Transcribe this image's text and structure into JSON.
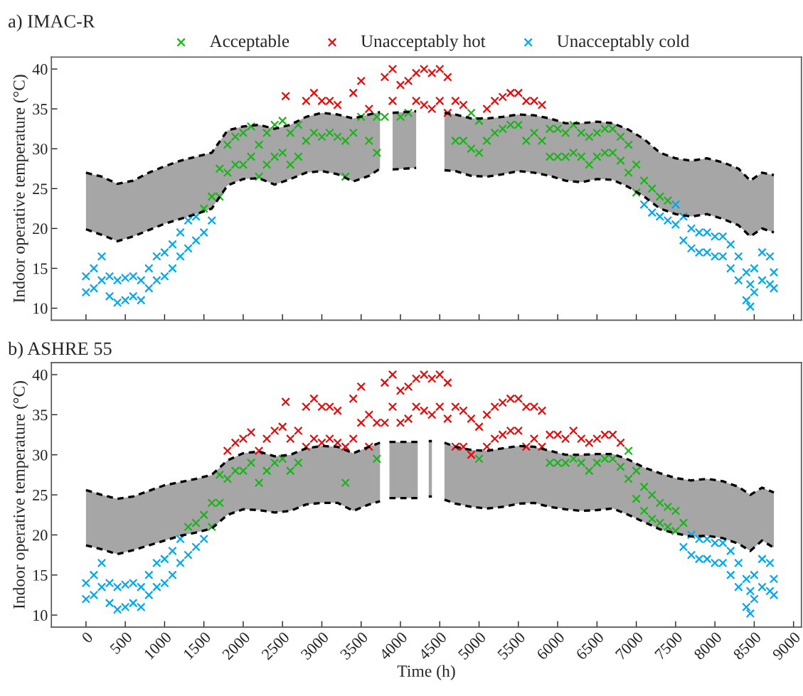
{
  "chart_data": [
    {
      "type": "scatter",
      "title": "a) IMAC-R",
      "ylabel": "Indoor operative temperature (°C)",
      "xlim": [
        -440,
        9100
      ],
      "ylim": [
        8.5,
        41.5
      ],
      "xticks": [
        0,
        500,
        1000,
        1500,
        2000,
        2500,
        3000,
        3500,
        4000,
        4500,
        5000,
        5500,
        6000,
        6500,
        7000,
        7500,
        8000,
        8500,
        9000
      ],
      "yticks": [
        10,
        15,
        20,
        25,
        30,
        35,
        40
      ],
      "tick_labels": "y",
      "legend": "top",
      "marker": "cross",
      "grid": false,
      "series": [
        {
          "type": "line",
          "color": "#000000",
          "line_style": "dashed",
          "marker": "none",
          "x": [
            0,
            200,
            400,
            600,
            800,
            1000,
            1200,
            1400,
            1600,
            1800,
            2000,
            2200,
            2400,
            2600,
            2800,
            3000,
            3200,
            3400,
            3600,
            3740,
            3820,
            3900,
            4200,
            4380,
            4560,
            4700,
            4900,
            5100,
            5300,
            5500,
            5700,
            5900,
            6100,
            6300,
            6500,
            6700,
            6900,
            7100,
            7300,
            7500,
            7700,
            7900,
            8100,
            8300,
            8450,
            8600,
            8750
          ],
          "values": [
            27,
            26.5,
            25.6,
            26,
            27,
            27.8,
            28.5,
            29,
            29.5,
            32.3,
            32.8,
            33,
            32.5,
            33,
            34,
            34.5,
            34.3,
            33.8,
            34.3,
            34.6,
            null,
            34.5,
            34.7,
            null,
            34.5,
            34.3,
            33.8,
            33.8,
            34,
            34.3,
            34.2,
            33.8,
            33.2,
            33.2,
            33.4,
            33.2,
            32.4,
            31.2,
            29.5,
            28.8,
            28.5,
            28.8,
            28.3,
            27.5,
            26,
            27,
            26.7
          ],
          "upper": [
            27,
            26.5,
            25.6,
            26,
            27,
            27.8,
            28.5,
            29,
            29.5,
            32.3,
            32.8,
            33,
            32.5,
            33,
            34,
            34.5,
            34.3,
            33.8,
            34.3,
            34.6,
            null,
            34.5,
            34.7,
            null,
            34.5,
            34.3,
            33.8,
            33.8,
            34,
            34.3,
            34.2,
            33.8,
            33.2,
            33.2,
            33.4,
            33.2,
            32.4,
            31.2,
            29.5,
            28.8,
            28.5,
            28.8,
            28.3,
            27.5,
            26,
            27,
            26.7
          ],
          "lower": [
            19.9,
            19.2,
            18.4,
            19,
            19.8,
            20.6,
            21.2,
            21.8,
            22.5,
            25.4,
            26.2,
            26.3,
            25.5,
            26.2,
            27,
            27.2,
            26.8,
            25.9,
            26.6,
            27.5,
            null,
            27.4,
            27.6,
            null,
            27.3,
            27.2,
            26.6,
            26.5,
            26.8,
            27.2,
            27,
            26.6,
            26,
            25.8,
            26.2,
            26.1,
            25.2,
            24,
            22.5,
            21.8,
            21.5,
            21.8,
            21.2,
            20.4,
            19,
            20,
            19.5
          ]
        },
        {
          "type": "line",
          "color": "#000000",
          "line_style": "dashed",
          "marker": "none",
          "x": [
            0,
            200,
            400,
            600,
            800,
            1000,
            1200,
            1400,
            1600,
            1800,
            2000,
            2200,
            2400,
            2600,
            2800,
            3000,
            3200,
            3400,
            3600,
            3740,
            3820,
            3900,
            4200,
            4380,
            4560,
            4700,
            4900,
            5100,
            5300,
            5500,
            5700,
            5900,
            6100,
            6300,
            6500,
            6700,
            6900,
            7100,
            7300,
            7500,
            7700,
            7900,
            8100,
            8300,
            8450,
            8600,
            8750
          ],
          "values": [
            19.9,
            19.2,
            18.4,
            19,
            19.8,
            20.6,
            21.2,
            21.8,
            22.5,
            25.4,
            26.2,
            26.3,
            25.5,
            26.2,
            27,
            27.2,
            26.8,
            25.9,
            26.6,
            27.5,
            null,
            27.4,
            27.6,
            null,
            27.3,
            27.2,
            26.6,
            26.5,
            26.8,
            27.2,
            27,
            26.6,
            26,
            25.8,
            26.2,
            26.1,
            25.2,
            24,
            22.5,
            21.8,
            21.5,
            21.8,
            21.2,
            20.4,
            19,
            20,
            19.5
          ]
        },
        {
          "name": "Acceptable",
          "color": "#1db31d",
          "x": [
            1500,
            1600,
            1700,
            1700,
            1800,
            1800,
            1900,
            1900,
            2000,
            2000,
            2100,
            2100,
            2200,
            2200,
            2300,
            2300,
            2400,
            2400,
            2500,
            2500,
            2600,
            2600,
            2700,
            2700,
            2800,
            2900,
            3000,
            3100,
            3200,
            3300,
            3300,
            3400,
            3500,
            3600,
            3700,
            3700,
            3800,
            4000,
            4100,
            4700,
            4800,
            4900,
            4900,
            5000,
            5000,
            5100,
            5200,
            5300,
            5400,
            5500,
            5600,
            5700,
            5800,
            5900,
            5900,
            6000,
            6000,
            6100,
            6100,
            6200,
            6200,
            6300,
            6300,
            6400,
            6400,
            6500,
            6500,
            6600,
            6600,
            6700,
            6700,
            6800,
            6800,
            6900,
            6900,
            7000,
            7000,
            7100,
            7200,
            7300,
            7400
          ],
          "values": [
            22.5,
            24,
            24,
            27.5,
            27,
            30.5,
            28,
            31.5,
            28,
            32,
            29,
            32.8,
            26.5,
            30.5,
            28,
            32,
            29,
            33,
            29.5,
            33.5,
            28,
            32,
            29,
            33,
            31,
            32,
            31.5,
            32,
            31.5,
            26.5,
            31,
            32,
            34,
            31,
            29.5,
            34,
            34,
            34,
            34.5,
            31,
            31,
            30,
            34.5,
            29.5,
            33.5,
            31,
            32,
            32.5,
            33,
            33,
            31,
            32,
            31,
            29,
            32.5,
            29,
            32.5,
            29,
            32,
            29.5,
            33,
            29,
            32,
            28,
            31.5,
            29,
            32,
            29.5,
            32.5,
            29.5,
            32.5,
            28.5,
            31.5,
            27,
            30.5,
            24.5,
            28,
            26,
            25,
            24,
            23.5
          ]
        },
        {
          "name": "Unacceptably hot",
          "color": "#e60a0a",
          "x": [
            2540,
            2800,
            2900,
            3000,
            3100,
            3200,
            3400,
            3500,
            3600,
            3800,
            3900,
            3900,
            4000,
            4100,
            4200,
            4200,
            4300,
            4300,
            4400,
            4400,
            4500,
            4500,
            4600,
            4600,
            4700,
            4800,
            5100,
            5200,
            5300,
            5400,
            5500,
            5600,
            5700,
            5800
          ],
          "values": [
            36.6,
            36,
            37,
            36,
            36,
            35.5,
            37,
            38.5,
            35,
            39,
            36,
            40,
            38,
            38.5,
            36,
            39.5,
            35.5,
            40,
            35,
            39.5,
            36,
            40,
            34.5,
            39,
            36,
            35.5,
            35,
            36,
            36.5,
            37,
            37,
            36,
            36,
            35.5
          ]
        },
        {
          "name": "Unacceptably cold",
          "color": "#00a8f0",
          "x": [
            0,
            0,
            100,
            100,
            200,
            200,
            300,
            300,
            400,
            400,
            500,
            500,
            600,
            600,
            700,
            700,
            800,
            800,
            900,
            900,
            1000,
            1000,
            1100,
            1100,
            1200,
            1200,
            1300,
            1300,
            1400,
            1400,
            1500,
            1600,
            7100,
            7200,
            7300,
            7400,
            7500,
            7500,
            7600,
            7600,
            7700,
            7700,
            7800,
            7800,
            7900,
            7900,
            8000,
            8000,
            8100,
            8100,
            8200,
            8200,
            8300,
            8300,
            8400,
            8400,
            8450,
            8450,
            8500,
            8500,
            8600,
            8600,
            8700,
            8700,
            8750,
            8750
          ],
          "values": [
            12,
            14,
            12.5,
            15,
            13.5,
            16.5,
            11.5,
            14,
            10.7,
            13.5,
            11,
            13.8,
            11.5,
            14,
            11,
            13.5,
            12.5,
            15,
            13.5,
            16.5,
            14,
            17,
            15,
            18,
            16.5,
            19.5,
            17.5,
            21,
            18.5,
            21.5,
            19.5,
            21,
            23,
            22,
            21.5,
            21,
            20.5,
            23,
            18.5,
            21.5,
            17.5,
            20,
            17,
            19.5,
            17,
            19.5,
            16.5,
            19,
            16.5,
            19,
            15,
            18,
            13.5,
            16.5,
            11,
            14.5,
            10.2,
            13,
            12,
            15,
            13.5,
            17,
            13,
            16.5,
            12.5,
            14.5
          ]
        }
      ]
    },
    {
      "type": "scatter",
      "title": "b) ASHRE 55",
      "xlabel": "Time (h)",
      "ylabel": "Indoor operative temperature (°C)",
      "xlim": [
        -440,
        9100
      ],
      "ylim": [
        8.5,
        41.5
      ],
      "xticks": [
        0,
        500,
        1000,
        1500,
        2000,
        2500,
        3000,
        3500,
        4000,
        4500,
        5000,
        5500,
        6000,
        6500,
        7000,
        7500,
        8000,
        8500,
        9000
      ],
      "yticks": [
        10,
        15,
        20,
        25,
        30,
        35,
        40
      ],
      "marker": "cross",
      "grid": false,
      "series": [
        {
          "type": "line",
          "color": "#000000",
          "line_style": "dashed",
          "marker": "none",
          "x": [
            0,
            200,
            400,
            600,
            800,
            1000,
            1200,
            1400,
            1600,
            1800,
            2000,
            2200,
            2400,
            2600,
            2800,
            3000,
            3200,
            3400,
            3600,
            3740,
            3800,
            3860,
            4220,
            4300,
            4360,
            4400,
            4480,
            4560,
            4700,
            4900,
            5100,
            5300,
            5500,
            5700,
            5900,
            6100,
            6300,
            6500,
            6700,
            6900,
            7100,
            7300,
            7500,
            7700,
            7900,
            8100,
            8300,
            8450,
            8600,
            8750
          ],
          "values": [
            25.6,
            25,
            24.5,
            24.8,
            25.5,
            26.2,
            26.6,
            27,
            27.5,
            29.3,
            30.2,
            30.4,
            29.8,
            30,
            30.8,
            31.1,
            31,
            30.2,
            31,
            31.5,
            null,
            31.6,
            31.6,
            null,
            31.7,
            31.7,
            null,
            31.5,
            31,
            30.6,
            30.5,
            30.8,
            31.1,
            31,
            30.5,
            30,
            30,
            30.1,
            30.1,
            29.4,
            28.4,
            27.7,
            27.1,
            26.8,
            27,
            26.7,
            26,
            25,
            25.9,
            25.3
          ],
          "upper": [
            25.6,
            25,
            24.5,
            24.8,
            25.5,
            26.2,
            26.6,
            27,
            27.5,
            29.3,
            30.2,
            30.4,
            29.8,
            30,
            30.8,
            31.1,
            31,
            30.2,
            31,
            31.5,
            null,
            31.6,
            31.6,
            null,
            31.7,
            31.7,
            null,
            31.5,
            31,
            30.6,
            30.5,
            30.8,
            31.1,
            31,
            30.5,
            30,
            30,
            30.1,
            30.1,
            29.4,
            28.4,
            27.7,
            27.1,
            26.8,
            27,
            26.7,
            26,
            25,
            25.9,
            25.3
          ],
          "lower": [
            18.7,
            18.2,
            17.6,
            18.1,
            18.7,
            19.3,
            19.9,
            20.3,
            20.8,
            22.5,
            23.2,
            23.1,
            22.8,
            23,
            23.8,
            24,
            24,
            23,
            23.8,
            24.2,
            null,
            24.6,
            24.6,
            null,
            24.8,
            24.8,
            null,
            24.4,
            23.9,
            23.5,
            23.3,
            23.5,
            23.9,
            24,
            23.5,
            23.2,
            23,
            23.1,
            23.3,
            22.5,
            21.6,
            20.7,
            20.2,
            19.8,
            19.9,
            19.6,
            18.9,
            18,
            19.3,
            18.4
          ]
        },
        {
          "type": "line",
          "color": "#000000",
          "line_style": "dashed",
          "marker": "none",
          "x": [
            0,
            200,
            400,
            600,
            800,
            1000,
            1200,
            1400,
            1600,
            1800,
            2000,
            2200,
            2400,
            2600,
            2800,
            3000,
            3200,
            3400,
            3600,
            3740,
            3800,
            3860,
            4220,
            4300,
            4360,
            4400,
            4480,
            4560,
            4700,
            4900,
            5100,
            5300,
            5500,
            5700,
            5900,
            6100,
            6300,
            6500,
            6700,
            6900,
            7100,
            7300,
            7500,
            7700,
            7900,
            8100,
            8300,
            8450,
            8600,
            8750
          ],
          "values": [
            18.7,
            18.2,
            17.6,
            18.1,
            18.7,
            19.3,
            19.9,
            20.3,
            20.8,
            22.5,
            23.2,
            23.1,
            22.8,
            23,
            23.8,
            24,
            24,
            23,
            23.8,
            24.2,
            null,
            24.6,
            24.6,
            null,
            24.8,
            24.8,
            null,
            24.4,
            23.9,
            23.5,
            23.3,
            23.5,
            23.9,
            24,
            23.5,
            23.2,
            23,
            23.1,
            23.3,
            22.5,
            21.6,
            20.7,
            20.2,
            19.8,
            19.9,
            19.6,
            18.9,
            18,
            19.3,
            18.4
          ]
        },
        {
          "color": "#1db31d",
          "x": [
            1300,
            1400,
            1500,
            1600,
            1600,
            1700,
            1700,
            1800,
            1900,
            2000,
            2100,
            2200,
            2300,
            2400,
            2500,
            2600,
            2700,
            3300,
            3700,
            5000,
            5900,
            6000,
            6100,
            6200,
            6300,
            6400,
            6500,
            6600,
            6700,
            6800,
            6900,
            6900,
            7000,
            7000,
            7100,
            7100,
            7200,
            7200,
            7300,
            7300,
            7400,
            7400,
            7500,
            7500,
            7600
          ],
          "values": [
            21,
            21.5,
            22.5,
            21,
            24,
            24,
            27.5,
            27,
            28,
            28,
            29,
            26.5,
            28,
            29,
            29.5,
            28,
            29,
            26.5,
            29.5,
            29.5,
            29,
            29,
            29,
            29.5,
            29,
            28,
            29,
            29.5,
            29.5,
            28.5,
            27,
            30.5,
            24.5,
            28,
            23,
            26,
            22,
            25,
            21.5,
            24,
            21,
            23.5,
            20.5,
            23,
            21.5
          ]
        },
        {
          "color": "#e60a0a",
          "x": [
            2540,
            1800,
            1900,
            2000,
            2100,
            2200,
            2300,
            2400,
            2500,
            2600,
            2700,
            2800,
            2800,
            2900,
            2900,
            3000,
            3000,
            3100,
            3100,
            3200,
            3200,
            3300,
            3400,
            3400,
            3500,
            3500,
            3600,
            3600,
            3700,
            3800,
            3800,
            3900,
            3900,
            4000,
            4000,
            4100,
            4100,
            4200,
            4200,
            4300,
            4300,
            4400,
            4400,
            4500,
            4500,
            4600,
            4600,
            4700,
            4700,
            4800,
            4800,
            4900,
            4900,
            5000,
            5100,
            5100,
            5200,
            5200,
            5300,
            5300,
            5400,
            5400,
            5500,
            5500,
            5600,
            5600,
            5700,
            5700,
            5800,
            5800,
            5900,
            6000,
            6100,
            6200,
            6300,
            6400,
            6500,
            6600,
            6700,
            6800
          ],
          "values": [
            36.6,
            30.5,
            31.5,
            32,
            32.8,
            30.5,
            32,
            33,
            33.5,
            32,
            33,
            31,
            36,
            32,
            37,
            31.5,
            36,
            32,
            36,
            31.5,
            35.5,
            31,
            32,
            37,
            34,
            38.5,
            31,
            35,
            34,
            34,
            39,
            36,
            40,
            34,
            38,
            34.5,
            38.5,
            36,
            39.5,
            35.5,
            40,
            35,
            39.5,
            36,
            40,
            34.5,
            39,
            31,
            36,
            31,
            35.5,
            30,
            34.5,
            33.5,
            31,
            35,
            32,
            36,
            32.5,
            36.5,
            33,
            37,
            33,
            37,
            31,
            36,
            32,
            36,
            31,
            35.5,
            32.5,
            32.5,
            32,
            33,
            32,
            31.5,
            32,
            32.5,
            32.5,
            31.5
          ]
        },
        {
          "color": "#00a8f0",
          "x": [
            0,
            0,
            100,
            100,
            200,
            200,
            300,
            300,
            400,
            400,
            500,
            500,
            600,
            600,
            700,
            700,
            800,
            800,
            900,
            900,
            1000,
            1000,
            1100,
            1100,
            1200,
            1200,
            1300,
            1400,
            1500,
            7600,
            7700,
            7700,
            7800,
            7800,
            7900,
            7900,
            8000,
            8000,
            8100,
            8100,
            8200,
            8200,
            8300,
            8300,
            8400,
            8400,
            8450,
            8450,
            8500,
            8500,
            8600,
            8600,
            8700,
            8700,
            8750,
            8750
          ],
          "values": [
            12,
            14,
            12.5,
            15,
            13.5,
            16.5,
            11.5,
            14,
            10.7,
            13.5,
            11,
            13.8,
            11.5,
            14,
            11,
            13.5,
            12.5,
            15,
            13.5,
            16.5,
            14,
            17,
            15,
            18,
            16.5,
            19.5,
            17.5,
            18.5,
            19.5,
            18.5,
            17.5,
            20,
            17,
            19.5,
            17,
            19.5,
            16.5,
            19,
            16.5,
            19,
            15,
            18,
            13.5,
            16.5,
            11,
            14.5,
            10.2,
            13,
            12,
            15,
            13.5,
            17,
            13,
            16.5,
            12.5,
            14.5
          ]
        }
      ]
    }
  ]
}
